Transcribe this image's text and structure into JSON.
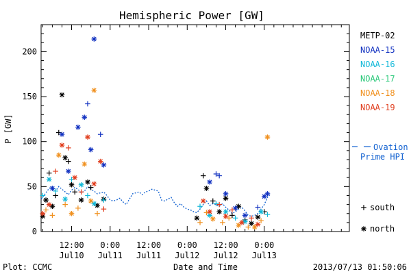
{
  "title": "Hemispheric Power [GW]",
  "footer": {
    "left": "Plot: CCMC",
    "right": "2013/07/13 01:50:06"
  },
  "chart_data": {
    "type": "scatter",
    "title": "Hemispheric Power [GW]",
    "xlabel": "Date and Time",
    "ylabel": "P [GW]",
    "x_units": "hours since 2013-07-09 00:00",
    "xlim": [
      2.5,
      98.5
    ],
    "ylim": [
      0,
      230
    ],
    "grid": false,
    "legend_position": "right",
    "y_ticks": [
      0,
      50,
      100,
      150,
      200
    ],
    "x_ticks": [
      {
        "value": 12,
        "line1": "12:00",
        "line2": "Jul10"
      },
      {
        "value": 24,
        "line1": "0:00",
        "line2": "Jul11"
      },
      {
        "value": 36,
        "line1": "12:00",
        "line2": "Jul11"
      },
      {
        "value": 48,
        "line1": "0:00",
        "line2": "Jul12"
      },
      {
        "value": 60,
        "line1": "12:00",
        "line2": "Jul12"
      },
      {
        "value": 72,
        "line1": "0:00",
        "line2": "Jul13"
      }
    ],
    "marker_legend": [
      {
        "symbol": "+",
        "label": "south"
      },
      {
        "symbol": "*",
        "label": "north"
      }
    ],
    "model_series": {
      "name": "Ovation Prime HPI",
      "label_line1": "Ovation",
      "label_line2": "Prime HPI",
      "color": "#1060d0",
      "x": [
        2.5,
        4,
        5,
        6,
        7,
        8,
        9,
        10,
        11,
        12,
        13,
        14,
        15,
        16,
        17,
        18,
        19,
        20,
        21,
        22,
        23,
        24,
        25,
        26,
        27,
        28,
        29,
        30,
        31,
        32,
        33,
        34,
        35,
        36,
        37,
        38,
        39,
        40,
        41,
        42,
        43,
        44,
        45,
        46,
        47,
        48,
        49,
        50,
        51,
        52,
        53,
        54,
        55,
        56,
        57,
        58,
        59,
        60,
        61,
        62,
        63,
        64,
        65,
        66,
        67,
        68,
        69,
        70,
        71,
        72,
        73,
        74
      ],
      "values": [
        36,
        43,
        48,
        50,
        45,
        50,
        47,
        44,
        41,
        46,
        49,
        47,
        43,
        45,
        50,
        47,
        45,
        42,
        43,
        44,
        40,
        35,
        34,
        35,
        37,
        33,
        30,
        36,
        42,
        43,
        44,
        41,
        44,
        45,
        47,
        46,
        45,
        35,
        34,
        36,
        38,
        32,
        28,
        31,
        27,
        25,
        24,
        22,
        21,
        25,
        30,
        34,
        29,
        31,
        30,
        28,
        31,
        27,
        24,
        20,
        22,
        25,
        27,
        23,
        18,
        17,
        18,
        20,
        25,
        30,
        38,
        42
      ]
    },
    "series": [
      {
        "name": "METP-02",
        "color": "#000000",
        "points": [
          {
            "x": 3,
            "y": 17,
            "m": "*"
          },
          {
            "x": 4,
            "y": 35,
            "m": "*"
          },
          {
            "x": 5,
            "y": 65,
            "m": "+"
          },
          {
            "x": 6,
            "y": 28,
            "m": "*"
          },
          {
            "x": 7,
            "y": 40,
            "m": "+"
          },
          {
            "x": 8,
            "y": 110,
            "m": "+"
          },
          {
            "x": 9,
            "y": 152,
            "m": "*"
          },
          {
            "x": 10,
            "y": 82,
            "m": "*"
          },
          {
            "x": 11,
            "y": 78,
            "m": "+"
          },
          {
            "x": 12,
            "y": 52,
            "m": "*"
          },
          {
            "x": 13,
            "y": 44,
            "m": "+"
          },
          {
            "x": 15,
            "y": 35,
            "m": "*"
          },
          {
            "x": 17,
            "y": 55,
            "m": "*"
          },
          {
            "x": 18,
            "y": 49,
            "m": "+"
          },
          {
            "x": 20,
            "y": 29,
            "m": "*"
          },
          {
            "x": 22,
            "y": 36,
            "m": "*"
          },
          {
            "x": 51,
            "y": 15,
            "m": "*"
          },
          {
            "x": 53,
            "y": 62,
            "m": "+"
          },
          {
            "x": 54,
            "y": 48,
            "m": "*"
          },
          {
            "x": 56,
            "y": 34,
            "m": "+"
          },
          {
            "x": 58,
            "y": 22,
            "m": "*"
          },
          {
            "x": 60,
            "y": 37,
            "m": "*"
          },
          {
            "x": 62,
            "y": 18,
            "m": "+"
          },
          {
            "x": 64,
            "y": 28,
            "m": "*"
          },
          {
            "x": 66,
            "y": 13,
            "m": "+"
          },
          {
            "x": 68,
            "y": 9,
            "m": "*"
          },
          {
            "x": 70,
            "y": 16,
            "m": "*"
          },
          {
            "x": 72,
            "y": 22,
            "m": "+"
          }
        ]
      },
      {
        "name": "NOAA-15",
        "color": "#1030c0",
        "points": [
          {
            "x": 6,
            "y": 48,
            "m": "*"
          },
          {
            "x": 9,
            "y": 108,
            "m": "*"
          },
          {
            "x": 11,
            "y": 67,
            "m": "*"
          },
          {
            "x": 14,
            "y": 116,
            "m": "*"
          },
          {
            "x": 16,
            "y": 127,
            "m": "*"
          },
          {
            "x": 17,
            "y": 142,
            "m": "+"
          },
          {
            "x": 18,
            "y": 91,
            "m": "*"
          },
          {
            "x": 19,
            "y": 214,
            "m": "*"
          },
          {
            "x": 21,
            "y": 108,
            "m": "+"
          },
          {
            "x": 22,
            "y": 74,
            "m": "*"
          },
          {
            "x": 55,
            "y": 55,
            "m": "*"
          },
          {
            "x": 57,
            "y": 64,
            "m": "+"
          },
          {
            "x": 58,
            "y": 62,
            "m": "+"
          },
          {
            "x": 60,
            "y": 42,
            "m": "*"
          },
          {
            "x": 63,
            "y": 26,
            "m": "*"
          },
          {
            "x": 66,
            "y": 18,
            "m": "*"
          },
          {
            "x": 70,
            "y": 27,
            "m": "+"
          },
          {
            "x": 72,
            "y": 39,
            "m": "*"
          },
          {
            "x": 73,
            "y": 42,
            "m": "*"
          }
        ]
      },
      {
        "name": "NOAA-16",
        "color": "#10b8d8",
        "points": [
          {
            "x": 3,
            "y": 40,
            "m": "+"
          },
          {
            "x": 5,
            "y": 58,
            "m": "*"
          },
          {
            "x": 7,
            "y": 45,
            "m": "+"
          },
          {
            "x": 10,
            "y": 36,
            "m": "*"
          },
          {
            "x": 12,
            "y": 58,
            "m": "+"
          },
          {
            "x": 15,
            "y": 52,
            "m": "*"
          },
          {
            "x": 17,
            "y": 40,
            "m": "+"
          },
          {
            "x": 19,
            "y": 31,
            "m": "*"
          },
          {
            "x": 22,
            "y": 35,
            "m": "+"
          },
          {
            "x": 52,
            "y": 28,
            "m": "+"
          },
          {
            "x": 55,
            "y": 18,
            "m": "*"
          },
          {
            "x": 57,
            "y": 31,
            "m": "+"
          },
          {
            "x": 60,
            "y": 22,
            "m": "*"
          },
          {
            "x": 63,
            "y": 15,
            "m": "+"
          },
          {
            "x": 66,
            "y": 11,
            "m": "*"
          },
          {
            "x": 71,
            "y": 22,
            "m": "*"
          },
          {
            "x": 73,
            "y": 19,
            "m": "+"
          }
        ]
      },
      {
        "name": "NOAA-17",
        "color": "#28c878",
        "points": []
      },
      {
        "name": "NOAA-18",
        "color": "#f0901e",
        "points": [
          {
            "x": 4,
            "y": 24,
            "m": "+"
          },
          {
            "x": 6,
            "y": 18,
            "m": "+"
          },
          {
            "x": 8,
            "y": 85,
            "m": "*"
          },
          {
            "x": 10,
            "y": 30,
            "m": "+"
          },
          {
            "x": 12,
            "y": 20,
            "m": "*"
          },
          {
            "x": 14,
            "y": 26,
            "m": "+"
          },
          {
            "x": 16,
            "y": 75,
            "m": "*"
          },
          {
            "x": 18,
            "y": 34,
            "m": "*"
          },
          {
            "x": 19,
            "y": 157,
            "m": "*"
          },
          {
            "x": 20,
            "y": 20,
            "m": "+"
          },
          {
            "x": 52,
            "y": 10,
            "m": "+"
          },
          {
            "x": 54,
            "y": 21,
            "m": "+"
          },
          {
            "x": 56,
            "y": 14,
            "m": "*"
          },
          {
            "x": 59,
            "y": 10,
            "m": "+"
          },
          {
            "x": 61,
            "y": 15,
            "m": "+"
          },
          {
            "x": 64,
            "y": 7,
            "m": "*"
          },
          {
            "x": 67,
            "y": 5,
            "m": "+"
          },
          {
            "x": 69,
            "y": 5,
            "m": "*"
          },
          {
            "x": 71,
            "y": 12,
            "m": "+"
          },
          {
            "x": 73,
            "y": 105,
            "m": "*"
          }
        ]
      },
      {
        "name": "NOAA-19",
        "color": "#e03c1c",
        "points": [
          {
            "x": 3,
            "y": 20,
            "m": "*"
          },
          {
            "x": 5,
            "y": 30,
            "m": "*"
          },
          {
            "x": 7,
            "y": 67,
            "m": "+"
          },
          {
            "x": 9,
            "y": 96,
            "m": "*"
          },
          {
            "x": 11,
            "y": 93,
            "m": "+"
          },
          {
            "x": 13,
            "y": 60,
            "m": "*"
          },
          {
            "x": 15,
            "y": 44,
            "m": "+"
          },
          {
            "x": 17,
            "y": 105,
            "m": "*"
          },
          {
            "x": 19,
            "y": 53,
            "m": "*"
          },
          {
            "x": 21,
            "y": 78,
            "m": "*"
          },
          {
            "x": 22,
            "y": 25,
            "m": "+"
          },
          {
            "x": 53,
            "y": 34,
            "m": "*"
          },
          {
            "x": 55,
            "y": 22,
            "m": "*"
          },
          {
            "x": 58,
            "y": 30,
            "m": "+"
          },
          {
            "x": 60,
            "y": 17,
            "m": "*"
          },
          {
            "x": 62,
            "y": 24,
            "m": "+"
          },
          {
            "x": 65,
            "y": 10,
            "m": "*"
          },
          {
            "x": 68,
            "y": 15,
            "m": "+"
          },
          {
            "x": 70,
            "y": 8,
            "m": "*"
          }
        ]
      }
    ]
  }
}
